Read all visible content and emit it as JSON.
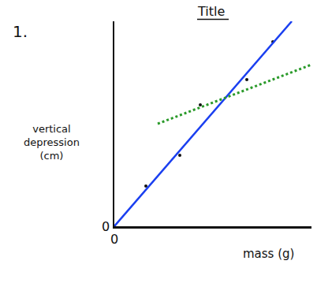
{
  "chart_data": {
    "type": "scatter",
    "title": "Title",
    "annotations": [
      "1."
    ],
    "x_label": "mass (g)",
    "y_label": "vertical depression (cm)",
    "xlim": [
      0,
      250
    ],
    "ylim": [
      0,
      260
    ],
    "xticks": [
      0
    ],
    "yticks": [
      0
    ],
    "grid": false,
    "series": [
      {
        "type": "scatter",
        "color": "#111111",
        "marker": "circle",
        "x": [
          0,
          40,
          83,
          109,
          168,
          201
        ],
        "values": [
          0,
          51,
          90,
          154,
          186,
          234
        ]
      },
      {
        "type": "line",
        "color": "#1a3ff0",
        "line_style": "solid",
        "x": [
          0,
          225
        ],
        "values": [
          0,
          260
        ]
      },
      {
        "type": "line",
        "color": "#2a9a2a",
        "line_style": "dot",
        "x": [
          55,
          250
        ],
        "values": [
          130,
          205
        ]
      }
    ]
  }
}
